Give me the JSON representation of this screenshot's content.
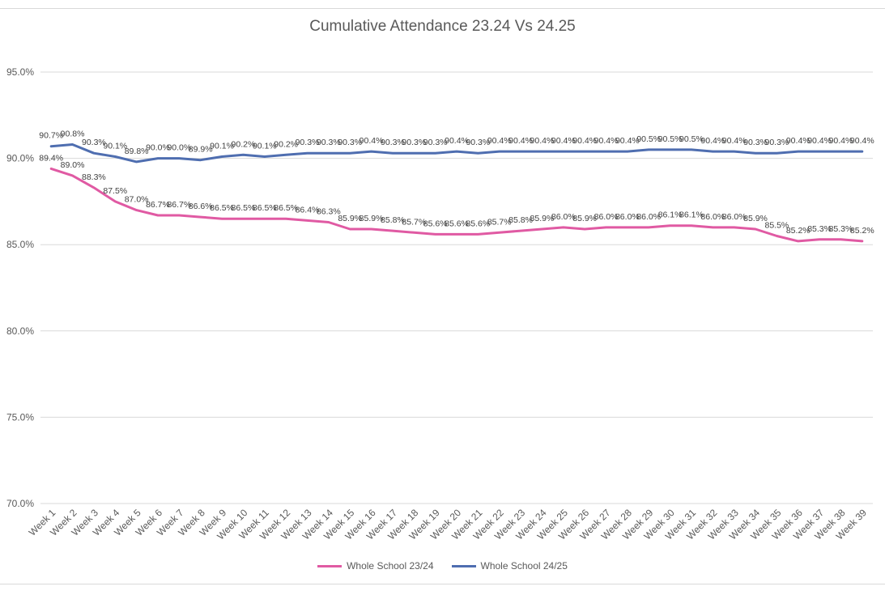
{
  "chart_data": {
    "type": "line",
    "title": "Cumulative Attendance 23.24 Vs 24.25",
    "xlabel": "",
    "ylabel": "",
    "ylim": [
      70,
      95
    ],
    "y_ticks": [
      "70.0%",
      "75.0%",
      "80.0%",
      "85.0%",
      "90.0%",
      "95.0%"
    ],
    "y_tick_values": [
      70,
      75,
      80,
      85,
      90,
      95
    ],
    "grid": true,
    "legend_position": "bottom",
    "categories": [
      "Week 1",
      "Week 2",
      "Week 3",
      "Week 4",
      "Week 5",
      "Week 6",
      "Week 7",
      "Week 8",
      "Week 9",
      "Week 10",
      "Week 11",
      "Week 12",
      "Week 13",
      "Week 14",
      "Week 15",
      "Week 16",
      "Week 17",
      "Week 18",
      "Week 19",
      "Week 20",
      "Week 21",
      "Week 22",
      "Week 23",
      "Week 24",
      "Week 25",
      "Week 26",
      "Week 27",
      "Week 28",
      "Week 29",
      "Week 30",
      "Week 31",
      "Week 32",
      "Week 33",
      "Week 34",
      "Week 35",
      "Week 36",
      "Week 37",
      "Week 38",
      "Week 39"
    ],
    "series": [
      {
        "name": "Whole School 23/24",
        "color": "#e05aa3",
        "values": [
          89.4,
          89.0,
          88.3,
          87.5,
          87.0,
          86.7,
          86.7,
          86.6,
          86.5,
          86.5,
          86.5,
          86.5,
          86.4,
          86.3,
          85.9,
          85.9,
          85.8,
          85.7,
          85.6,
          85.6,
          85.6,
          85.7,
          85.8,
          85.9,
          86.0,
          85.9,
          86.0,
          86.0,
          86.0,
          86.1,
          86.1,
          86.0,
          86.0,
          85.9,
          85.5,
          85.2,
          85.3,
          85.3,
          85.2
        ],
        "labels": [
          "89.4%",
          "89.0%",
          "88.3%",
          "87.5%",
          "87.0%",
          "86.7%",
          "86.7%",
          "86.6%",
          "86.5%",
          "86.5%",
          "86.5%",
          "86.5%",
          "86.4%",
          "86.3%",
          "85.9%",
          "85.9%",
          "85.8%",
          "85.7%",
          "85.6%",
          "85.6%",
          "85.6%",
          "85.7%",
          "85.8%",
          "85.9%",
          "86.0%",
          "85.9%",
          "86.0%",
          "86.0%",
          "86.0%",
          "86.1%",
          "86.1%",
          "86.0%",
          "86.0%",
          "85.9%",
          "85.5%",
          "85.2%",
          "85.3%",
          "85.3%",
          "85.2%"
        ]
      },
      {
        "name": "Whole School 24/25",
        "color": "#4f6eb0",
        "values": [
          90.7,
          90.8,
          90.3,
          90.1,
          89.8,
          90.0,
          90.0,
          89.9,
          90.1,
          90.2,
          90.1,
          90.2,
          90.3,
          90.3,
          90.3,
          90.4,
          90.3,
          90.3,
          90.3,
          90.4,
          90.3,
          90.4,
          90.4,
          90.4,
          90.4,
          90.4,
          90.4,
          90.4,
          90.5,
          90.5,
          90.5,
          90.4,
          90.4,
          90.3,
          90.3,
          90.4,
          90.4,
          90.4,
          90.4
        ],
        "labels": [
          "90.7%",
          "90.8%",
          "90.3%",
          "90.1%",
          "89.8%",
          "90.0%",
          "90.0%",
          "89.9%",
          "90.1%",
          "90.2%",
          "90.1%",
          "90.2%",
          "90.3%",
          "90.3%",
          "90.3%",
          "90.4%",
          "90.3%",
          "90.3%",
          "90.3%",
          "90.4%",
          "90.3%",
          "90.4%",
          "90.4%",
          "90.4%",
          "90.4%",
          "90.4%",
          "90.4%",
          "90.4%",
          "90.5%",
          "90.5%",
          "90.5%",
          "90.4%",
          "90.4%",
          "90.3%",
          "90.3%",
          "90.4%",
          "90.4%",
          "90.4%",
          "90.4%"
        ]
      }
    ]
  }
}
